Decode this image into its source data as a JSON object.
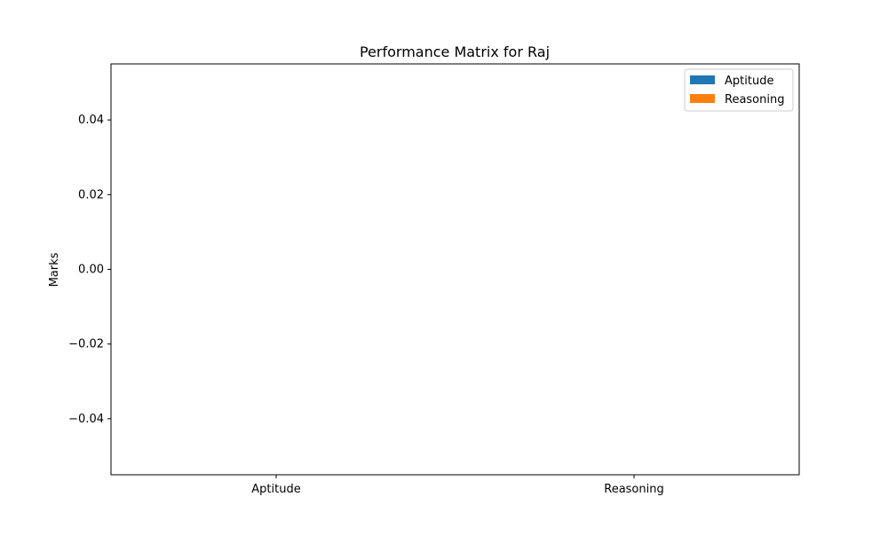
{
  "chart_data": {
    "type": "bar",
    "title": "Performance Matrix for Raj",
    "xlabel": "",
    "ylabel": "Marks",
    "categories": [
      "Aptitude",
      "Reasoning"
    ],
    "ylim": [
      -0.055,
      0.055
    ],
    "yticks": [
      0.04,
      0.02,
      0.0,
      -0.02,
      -0.04
    ],
    "ytick_labels": [
      "0.04",
      "0.02",
      "0.00",
      "−0.02",
      "−0.04"
    ],
    "grid": false,
    "legend_placement": "upper right",
    "series": [
      {
        "name": "Aptitude",
        "color": "#1f77b4",
        "values": [
          0,
          0
        ]
      },
      {
        "name": "Reasoning",
        "color": "#ff7f0e",
        "values": [
          0,
          0
        ]
      }
    ]
  }
}
